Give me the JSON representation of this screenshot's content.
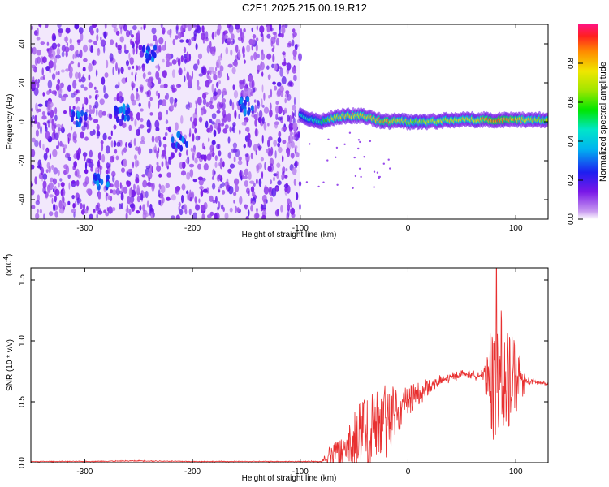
{
  "title": "C2E1.2025.215.00.19.R12",
  "colors": {
    "spectrogram_low": "#e8d8f8",
    "spectrogram_mid": "#7b2fd8",
    "snr_line": "#e83030"
  },
  "chart_data": [
    {
      "type": "heatmap",
      "title": "C2E1.2025.215.00.19.R12",
      "xlabel": "Height of straight line (km)",
      "ylabel": "Frequency (Hz)",
      "xlim": [
        -350,
        130
      ],
      "ylim": [
        -50,
        50
      ],
      "xticks": [
        -300,
        -200,
        -100,
        0,
        100
      ],
      "yticks": [
        -40,
        -20,
        0,
        20,
        40
      ],
      "noise_region_x": [
        -350,
        -100
      ],
      "signal_track": {
        "x": [
          -100,
          -90,
          -80,
          -70,
          -60,
          -50,
          -40,
          -30,
          -20,
          -10,
          0,
          20,
          40,
          60,
          80,
          100,
          120,
          130
        ],
        "freq": [
          4,
          1,
          0,
          2,
          3,
          3,
          3,
          1,
          0,
          1,
          0,
          0,
          1,
          1,
          1,
          1,
          1,
          1
        ],
        "amplitude": [
          0.45,
          0.5,
          0.55,
          0.75,
          0.8,
          0.8,
          0.85,
          0.85,
          0.9,
          0.85,
          0.7,
          0.75,
          0.8,
          0.8,
          0.95,
          0.9,
          0.75,
          0.7
        ]
      },
      "colorbar": {
        "label": "Normalized spectral amplitude",
        "range": [
          0,
          1
        ],
        "ticks": [
          "0.0",
          "0.2",
          "0.4",
          "0.6",
          "0.8"
        ]
      }
    },
    {
      "type": "line",
      "xlabel": "Height of straight line (km)",
      "ylabel": "SNR (10 * v/v)",
      "scale_note": "(x10",
      "scale_exp": "4",
      "scale_close": ")",
      "xlim": [
        -350,
        130
      ],
      "ylim": [
        0,
        1.6
      ],
      "xticks": [
        -300,
        -200,
        -100,
        0,
        100
      ],
      "yticks": [
        "0.0",
        "0.5",
        "1.0",
        "1.5"
      ],
      "series": [
        {
          "x": [
            -350,
            -300,
            -250,
            -200,
            -150,
            -110,
            -100,
            -80,
            -75,
            -60,
            -50,
            -40,
            -30,
            -20,
            -10,
            0,
            10,
            20,
            30,
            40,
            50,
            60,
            70,
            80,
            85,
            90,
            100,
            110,
            120,
            130
          ],
          "y": [
            0.01,
            0.01,
            0.015,
            0.01,
            0.01,
            0.01,
            0.01,
            0.01,
            0.04,
            0.1,
            0.18,
            0.25,
            0.32,
            0.35,
            0.42,
            0.5,
            0.57,
            0.62,
            0.67,
            0.7,
            0.73,
            0.72,
            0.72,
            0.7,
            0.7,
            0.72,
            0.68,
            0.67,
            0.66,
            0.64
          ],
          "noise": [
            0.003,
            0.003,
            0.004,
            0.003,
            0.003,
            0.003,
            0.003,
            0.005,
            0.05,
            0.08,
            0.15,
            0.2,
            0.18,
            0.2,
            0.12,
            0.08,
            0.06,
            0.05,
            0.04,
            0.04,
            0.03,
            0.03,
            0.04,
            0.35,
            0.4,
            0.3,
            0.2,
            0.03,
            0.02,
            0.02
          ],
          "peak": {
            "x": 82,
            "y": 1.6
          }
        }
      ]
    }
  ]
}
